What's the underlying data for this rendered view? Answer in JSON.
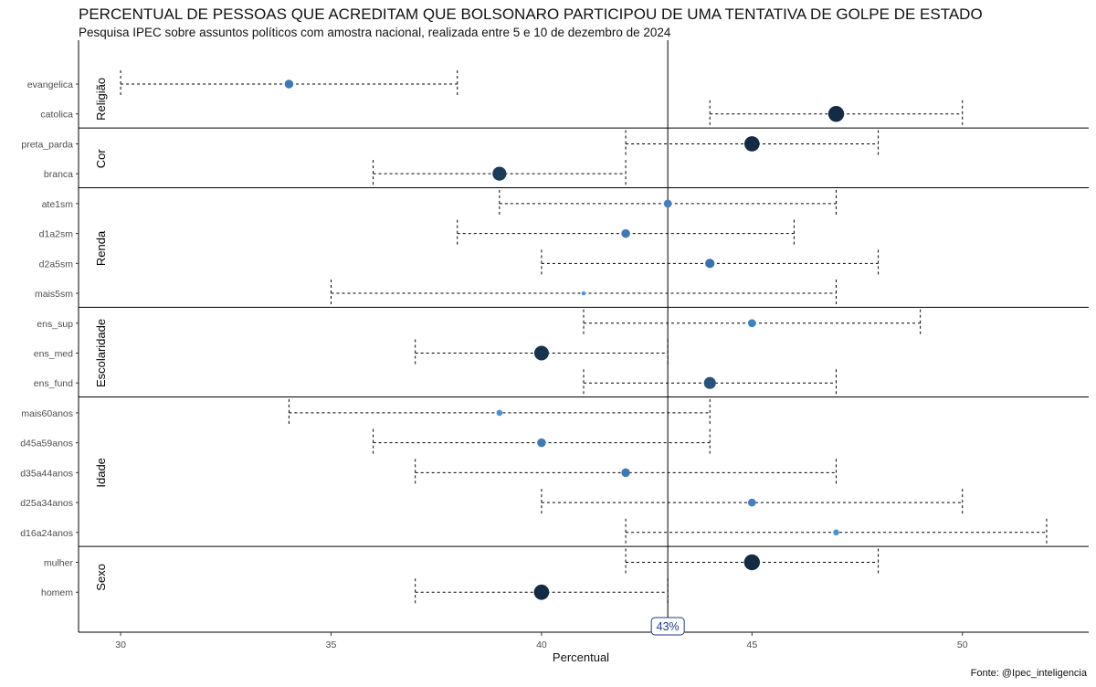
{
  "title": "PERCENTUAL DE PESSOAS QUE ACREDITAM QUE BOLSONARO PARTICIPOU DE UMA TENTATIVA DE GOLPE DE ESTADO",
  "subtitle": "Pesquisa IPEC sobre assuntos políticos com amostra nacional, realizada entre 5 e 10 de dezembro de 2024",
  "source": "Fonte: @Ipec_inteligencia",
  "chart_data": {
    "type": "scatter",
    "subtype": "dot-with-interval",
    "xlabel": "Percentual",
    "ylabel": "",
    "xlim": [
      29,
      53
    ],
    "x_ticks": [
      30,
      35,
      40,
      45,
      50
    ],
    "reference_line": {
      "value": 43,
      "label": "43%"
    },
    "colors": {
      "point_light": "#4a90d9",
      "point_dark": "#132b43",
      "line": "#000000",
      "annotation": "#1f3a93"
    },
    "groups": [
      {
        "name": "Religião",
        "rows": [
          {
            "label": "evangelica",
            "value": 34,
            "low": 30,
            "high": 38,
            "size": 0.45
          },
          {
            "label": "catolica",
            "value": 47,
            "low": 44,
            "high": 50,
            "size": 1.0
          }
        ]
      },
      {
        "name": "Cor",
        "rows": [
          {
            "label": "preta_parda",
            "value": 45,
            "low": 42,
            "high": 48,
            "size": 0.95
          },
          {
            "label": "branca",
            "value": 39,
            "low": 36,
            "high": 42,
            "size": 0.85
          }
        ]
      },
      {
        "name": "Renda",
        "rows": [
          {
            "label": "ate1sm",
            "value": 43,
            "low": 39,
            "high": 47,
            "size": 0.4
          },
          {
            "label": "d1a2sm",
            "value": 42,
            "low": 38,
            "high": 46,
            "size": 0.45
          },
          {
            "label": "d2a5sm",
            "value": 44,
            "low": 40,
            "high": 48,
            "size": 0.5
          },
          {
            "label": "mais5sm",
            "value": 41,
            "low": 35,
            "high": 47,
            "size": 0.1
          }
        ]
      },
      {
        "name": "Escolaridade",
        "rows": [
          {
            "label": "ens_sup",
            "value": 45,
            "low": 41,
            "high": 49,
            "size": 0.4
          },
          {
            "label": "ens_med",
            "value": 40,
            "low": 37,
            "high": 43,
            "size": 0.9
          },
          {
            "label": "ens_fund",
            "value": 44,
            "low": 41,
            "high": 47,
            "size": 0.7
          }
        ]
      },
      {
        "name": "Idade",
        "rows": [
          {
            "label": "mais60anos",
            "value": 39,
            "low": 34,
            "high": 44,
            "size": 0.25
          },
          {
            "label": "d45a59anos",
            "value": 40,
            "low": 36,
            "high": 44,
            "size": 0.45
          },
          {
            "label": "d35a44anos",
            "value": 42,
            "low": 37,
            "high": 47,
            "size": 0.45
          },
          {
            "label": "d25a34anos",
            "value": 45,
            "low": 40,
            "high": 50,
            "size": 0.4
          },
          {
            "label": "d16a24anos",
            "value": 47,
            "low": 42,
            "high": 52,
            "size": 0.25
          }
        ]
      },
      {
        "name": "Sexo",
        "rows": [
          {
            "label": "mulher",
            "value": 45,
            "low": 42,
            "high": 48,
            "size": 1.0
          },
          {
            "label": "homem",
            "value": 40,
            "low": 37,
            "high": 43,
            "size": 0.95
          }
        ]
      }
    ]
  }
}
